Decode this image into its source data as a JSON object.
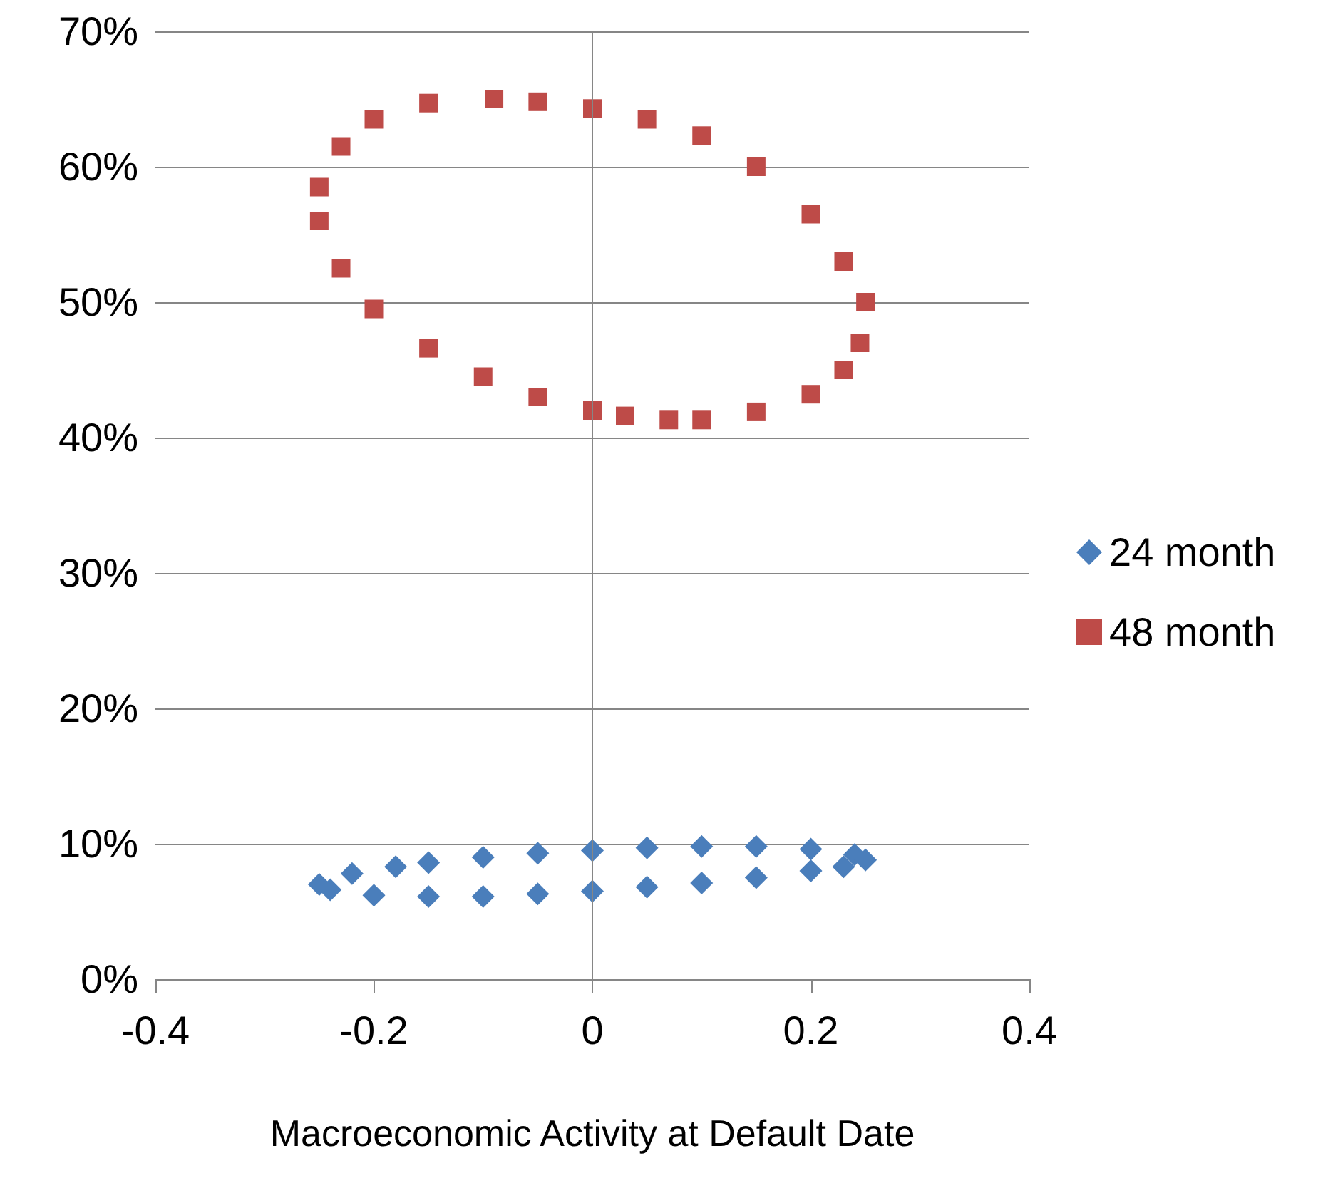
{
  "chart_data": {
    "type": "scatter",
    "xlabel": "Macroeconomic Activity at Default Date",
    "xlim": [
      -0.4,
      0.4
    ],
    "xticks": [
      -0.4,
      -0.2,
      0,
      0.2,
      0.4
    ],
    "ylim": [
      0,
      70
    ],
    "yticks": [
      {
        "value": 0,
        "label": "0%"
      },
      {
        "value": 10,
        "label": "10%"
      },
      {
        "value": 20,
        "label": "20%"
      },
      {
        "value": 30,
        "label": "30%"
      },
      {
        "value": 40,
        "label": "40%"
      },
      {
        "value": 50,
        "label": "50%"
      },
      {
        "value": 60,
        "label": "60%"
      },
      {
        "value": 70,
        "label": "70%"
      }
    ],
    "grid": "y",
    "legend": "right",
    "ref_lines": [
      {
        "axis": "x",
        "value": 0,
        "color": "#868686"
      }
    ],
    "series": [
      {
        "name": "24 month",
        "color": "#4a7ebb",
        "marker": "diamond",
        "x": [
          -0.25,
          -0.22,
          -0.18,
          -0.15,
          -0.1,
          -0.05,
          0,
          0.05,
          0.1,
          0.15,
          0.2,
          0.24,
          0.25,
          0.23,
          0.2,
          0.15,
          0.1,
          0.05,
          0,
          -0.05,
          -0.1,
          -0.15,
          -0.2,
          -0.24
        ],
        "values": [
          7.0,
          7.8,
          8.3,
          8.6,
          9.0,
          9.3,
          9.5,
          9.7,
          9.8,
          9.8,
          9.6,
          9.2,
          8.8,
          8.3,
          8.0,
          7.5,
          7.1,
          6.8,
          6.5,
          6.3,
          6.1,
          6.1,
          6.2,
          6.6
        ]
      },
      {
        "name": "48 month",
        "color": "#be4b48",
        "marker": "square",
        "x": [
          -0.09,
          -0.05,
          0,
          0.05,
          0.1,
          0.15,
          0.2,
          0.23,
          0.25,
          0.245,
          0.23,
          0.2,
          0.15,
          0.1,
          0.07,
          0.03,
          0,
          -0.05,
          -0.1,
          -0.15,
          -0.2,
          -0.23,
          -0.25,
          -0.25,
          -0.23,
          -0.2,
          -0.15
        ],
        "values": [
          65.0,
          64.8,
          64.3,
          63.5,
          62.3,
          60.0,
          56.5,
          53.0,
          50.0,
          47.0,
          45.0,
          43.2,
          41.9,
          41.3,
          41.3,
          41.6,
          42.0,
          43.0,
          44.5,
          46.6,
          49.5,
          52.5,
          56.0,
          58.5,
          61.5,
          63.5,
          64.7
        ]
      }
    ]
  }
}
